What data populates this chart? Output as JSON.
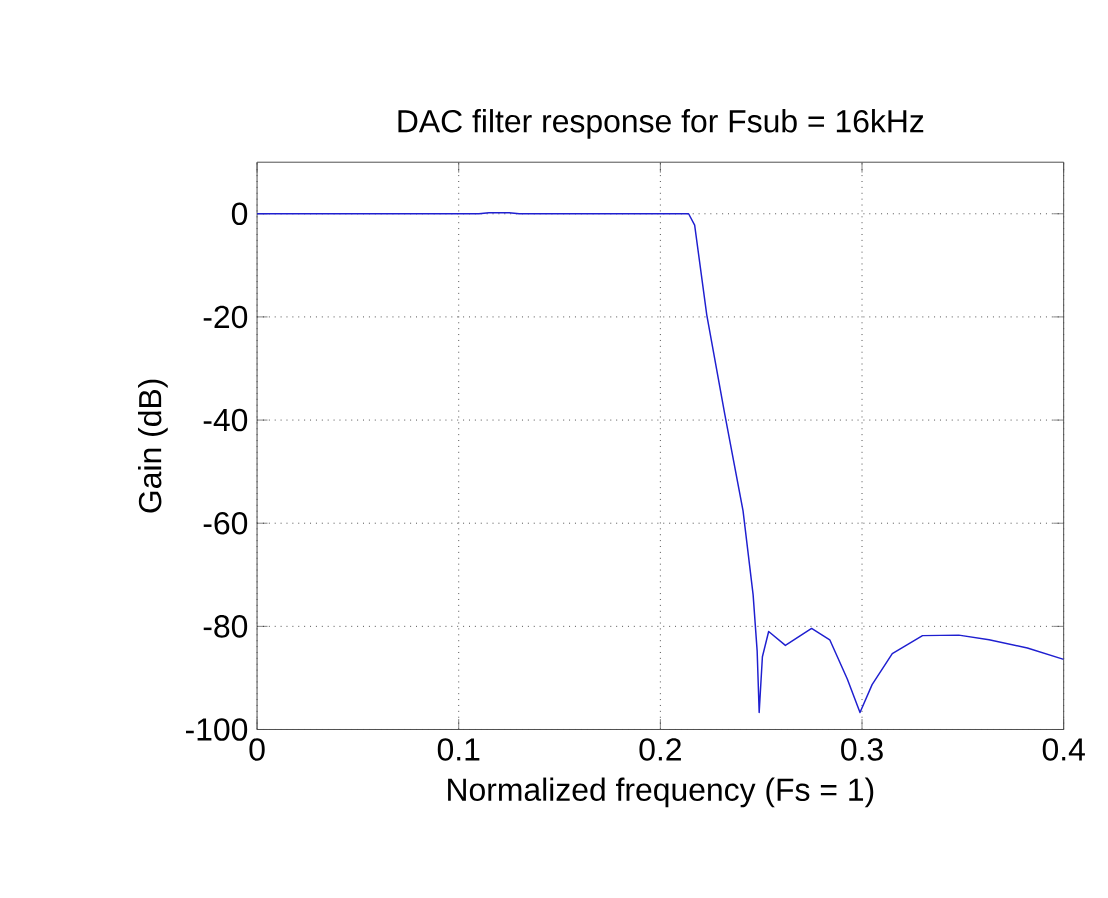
{
  "chart_data": {
    "type": "line",
    "title": "DAC filter response for Fsub = 16kHz",
    "xlabel": "Normalized frequency (Fs = 1)",
    "ylabel": "Gain (dB)",
    "xlim": [
      0,
      0.4
    ],
    "ylim": [
      -100,
      10
    ],
    "xticks": [
      0,
      0.1,
      0.2,
      0.3,
      0.4
    ],
    "yticks": [
      -100,
      -80,
      -60,
      -40,
      -20,
      0
    ],
    "grid": true,
    "line_style": "solid",
    "series": [
      {
        "color": "#1f1fd0",
        "x": [
          0,
          0.05,
          0.11,
          0.115,
          0.125,
          0.13,
          0.18,
          0.214,
          0.217,
          0.223,
          0.232,
          0.241,
          0.246,
          0.248,
          0.249,
          0.2506,
          0.2537,
          0.262,
          0.275,
          0.284,
          0.2927,
          0.299,
          0.305,
          0.315,
          0.33,
          0.348,
          0.363,
          0.382,
          0.4
        ],
        "values": [
          0,
          0,
          0,
          0.2,
          0.2,
          0,
          0,
          0,
          -2.2,
          -19.6,
          -39,
          -57.6,
          -73.9,
          -84.8,
          -96.7,
          -85.9,
          -81,
          -83.7,
          -80.4,
          -82.6,
          -90.2,
          -96.7,
          -91.3,
          -85.3,
          -81.8,
          -81.7,
          -82.6,
          -84.2,
          -86.4
        ]
      }
    ]
  }
}
